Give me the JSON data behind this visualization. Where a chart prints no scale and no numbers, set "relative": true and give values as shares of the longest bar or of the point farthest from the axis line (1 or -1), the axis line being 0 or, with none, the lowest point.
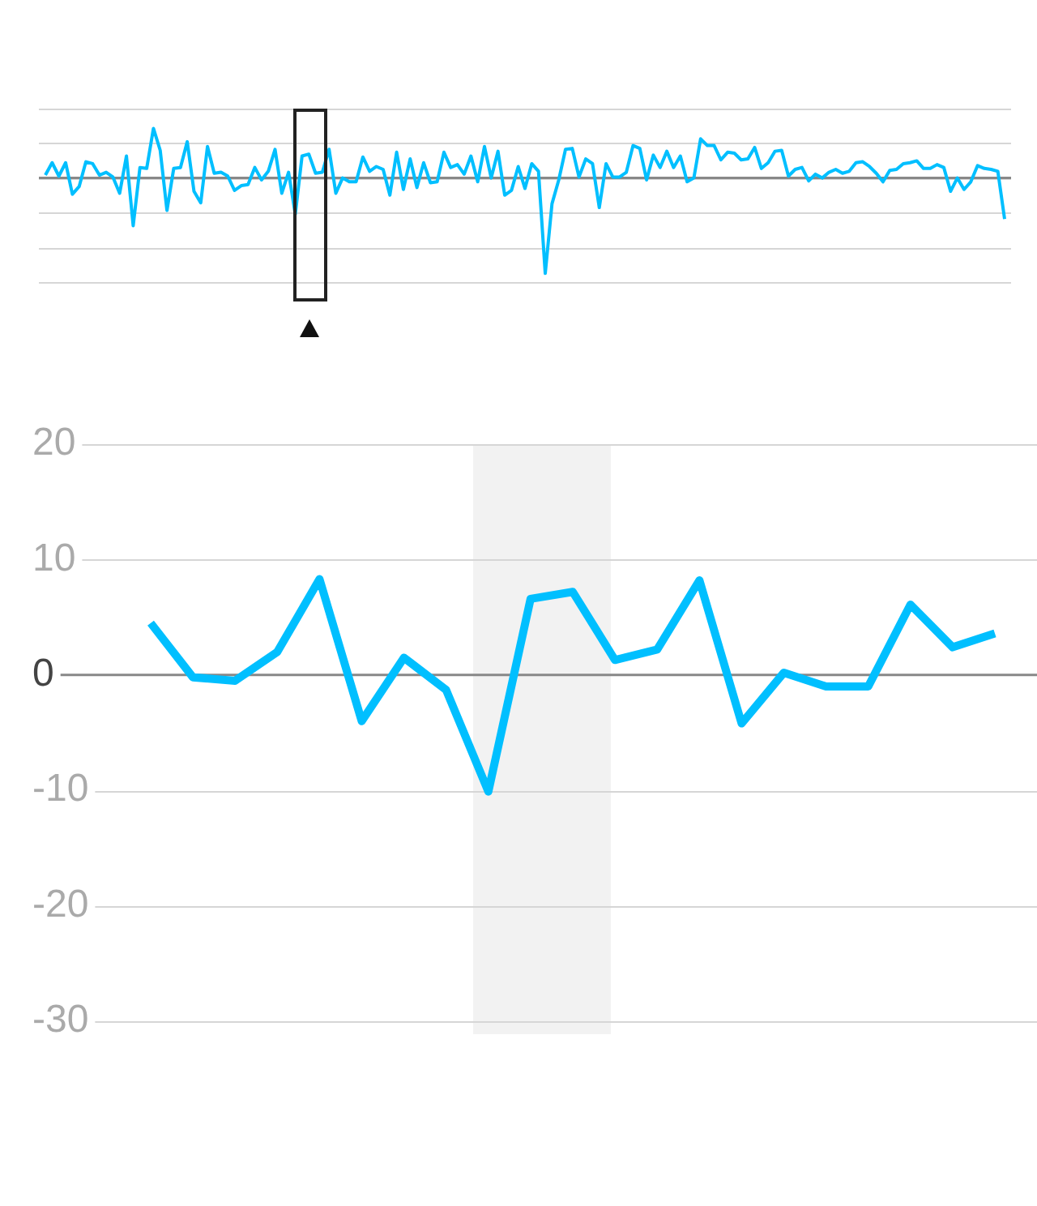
{
  "chart_data": [
    {
      "type": "line",
      "relative": true,
      "color": "#00bfff",
      "categories": [
        null,
        null,
        null,
        null,
        null,
        null,
        null,
        null,
        null,
        null,
        null,
        null,
        null,
        null,
        null,
        null,
        null,
        null,
        null,
        null,
        null,
        null,
        null,
        null,
        null,
        null,
        null,
        null,
        null,
        null,
        null,
        null,
        null,
        null,
        null,
        null,
        null,
        null,
        null,
        null,
        null,
        null,
        null,
        null,
        null,
        null,
        null,
        null,
        null,
        null,
        null,
        null,
        null,
        null,
        null,
        null,
        null,
        null,
        null,
        null,
        null,
        null,
        null,
        null,
        null,
        null,
        null,
        null,
        null,
        null,
        null,
        null,
        null,
        null,
        null,
        null,
        null,
        null,
        null,
        null,
        null,
        null,
        null,
        null,
        null,
        null,
        null,
        null,
        null,
        null,
        null,
        null,
        null,
        null,
        null,
        null,
        null,
        null,
        null,
        null,
        null,
        null,
        null,
        null,
        null,
        null,
        null,
        null,
        null,
        null,
        null,
        null,
        null,
        null,
        null,
        null,
        null,
        null,
        null,
        null,
        null,
        null,
        null,
        null,
        null,
        null,
        null,
        null,
        null,
        null,
        null,
        null,
        null,
        null,
        null,
        null,
        null,
        null,
        null,
        null,
        null,
        null,
        null
      ],
      "values": [
        0.03,
        0.16,
        0.02,
        0.16,
        -0.17,
        -0.09,
        0.17,
        0.15,
        0.03,
        0.06,
        0.01,
        -0.16,
        0.23,
        -0.5,
        0.11,
        0.1,
        0.52,
        0.29,
        -0.34,
        0.1,
        0.11,
        0.38,
        -0.14,
        -0.26,
        0.33,
        0.05,
        0.06,
        0.02,
        -0.13,
        -0.08,
        -0.07,
        0.11,
        -0.02,
        0.07,
        0.3,
        -0.16,
        0.06,
        -0.38,
        0.23,
        0.25,
        0.05,
        0.06,
        0.3,
        -0.16,
        0,
        -0.04,
        -0.04,
        0.22,
        0.07,
        0.12,
        0.09,
        -0.18,
        0.27,
        -0.12,
        0.2,
        -0.1,
        0.16,
        -0.05,
        -0.04,
        0.27,
        0.11,
        0.14,
        0.04,
        0.23,
        -0.04,
        0.33,
        0,
        0.28,
        -0.18,
        -0.13,
        0.12,
        -0.11,
        0.15,
        0.07,
        -1,
        -0.27,
        -0.02,
        0.3,
        0.31,
        0.01,
        0.2,
        0.15,
        -0.31,
        0.15,
        0.01,
        0.01,
        0.06,
        0.34,
        0.31,
        -0.02,
        0.24,
        0.11,
        0.28,
        0.11,
        0.23,
        -0.04,
        0,
        0.41,
        0.34,
        0.34,
        0.19,
        0.27,
        0.26,
        0.19,
        0.2,
        0.32,
        0.1,
        0.16,
        0.28,
        0.29,
        0.02,
        0.09,
        0.11,
        -0.03,
        0.04,
        0,
        0.06,
        0.09,
        0.05,
        0.07,
        0.16,
        0.17,
        0.12,
        0.05,
        -0.04,
        0.08,
        0.09,
        0.15,
        0.16,
        0.18,
        0.1,
        0.1,
        0.14,
        0.11,
        -0.14,
        0,
        -0.12,
        -0.04,
        0.13,
        0.1,
        0.09,
        0.07,
        -0.43
      ],
      "grid": "y",
      "tick_labels": false
    },
    {
      "type": "line",
      "color": "#00bfff",
      "categories": [
        null,
        null,
        null,
        null,
        null,
        null,
        null,
        null,
        null,
        null,
        null,
        null,
        null,
        null,
        null,
        null,
        null,
        null,
        null,
        null,
        null
      ],
      "values": [
        4.5,
        -0.2,
        -0.5,
        2.0,
        8.3,
        -4.0,
        1.5,
        -1.3,
        -10.1,
        6.6,
        7.2,
        1.3,
        2.2,
        8.2,
        -4.2,
        0.2,
        -1.0,
        -1.0,
        6.1,
        2.4,
        3.6
      ],
      "ylim": [
        -30,
        20
      ],
      "yticks": [
        -30,
        -20,
        -10,
        0,
        10,
        20
      ],
      "grid": "y",
      "tick_labels": "y",
      "ref_lines": [
        {
          "axis": "y",
          "value": 0,
          "color": "#888888"
        }
      ]
    }
  ]
}
